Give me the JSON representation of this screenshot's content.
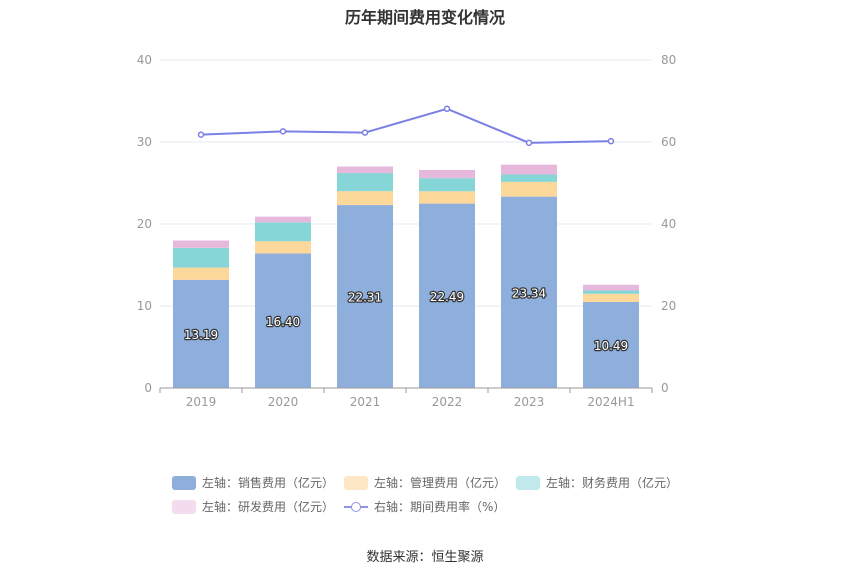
{
  "chart_data": {
    "type": "bar",
    "title": "历年期间费用变化情况",
    "categories": [
      "2019",
      "2020",
      "2021",
      "2022",
      "2023",
      "2024H1"
    ],
    "y_left": {
      "ylim": [
        0,
        40
      ],
      "ticks": [
        0,
        10,
        20,
        30,
        40
      ]
    },
    "y_right": {
      "ylim": [
        0,
        80
      ],
      "ticks": [
        0,
        20,
        40,
        60,
        80
      ]
    },
    "stacked": true,
    "series": [
      {
        "name": "左轴：销售费用（亿元）",
        "axis": "left",
        "type": "bar",
        "color": "#8eaedc",
        "values": [
          13.19,
          16.4,
          22.31,
          22.49,
          23.34,
          10.49
        ],
        "show_labels": true
      },
      {
        "name": "左轴：管理费用（亿元）",
        "axis": "left",
        "type": "bar",
        "color": "#fdd89b",
        "values": [
          1.5,
          1.5,
          1.7,
          1.5,
          1.8,
          1.0
        ]
      },
      {
        "name": "左轴：财务费用（亿元）",
        "axis": "left",
        "type": "bar",
        "color": "#86d6d8",
        "values": [
          2.4,
          2.3,
          2.2,
          1.6,
          0.9,
          0.4
        ]
      },
      {
        "name": "左轴：研发费用（亿元）",
        "axis": "left",
        "type": "bar",
        "color": "#e6b9dc",
        "values": [
          0.9,
          0.7,
          0.8,
          1.0,
          1.2,
          0.7
        ]
      },
      {
        "name": "右轴：期间费用率（%）",
        "axis": "right",
        "type": "line",
        "color": "#7b80e6",
        "values": [
          61.8,
          62.6,
          62.3,
          68.1,
          59.8,
          60.2
        ]
      }
    ],
    "legend_placement": "bottom",
    "grid": true
  },
  "source": "数据来源：恒生聚源"
}
